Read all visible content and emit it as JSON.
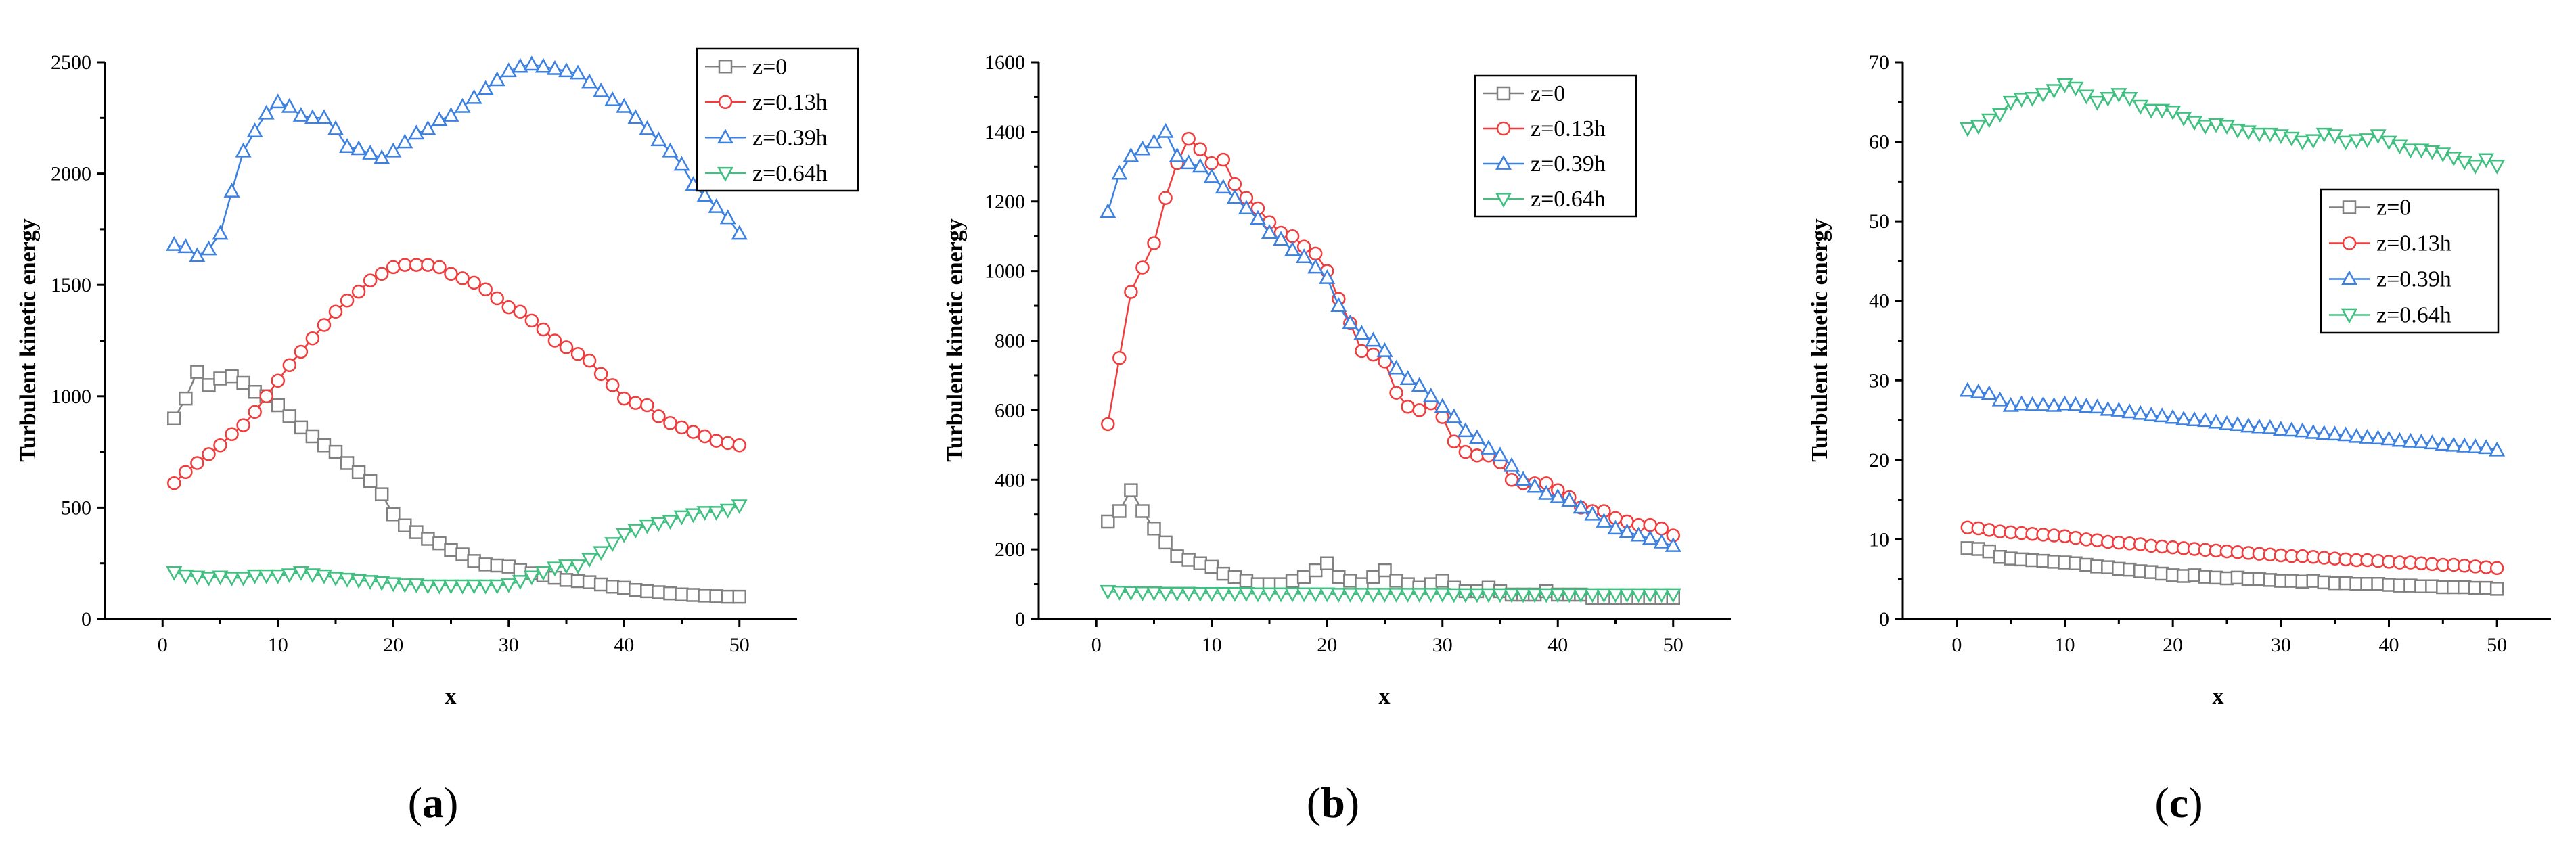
{
  "chart_data": [
    {
      "type": "line",
      "panel_label": "a",
      "xlabel": "x",
      "ylabel": "Turbulent kinetic energy",
      "xlim": [
        -5,
        55
      ],
      "ylim": [
        0,
        2500
      ],
      "xticks": [
        0,
        10,
        20,
        30,
        40,
        50
      ],
      "yticks": [
        0,
        500,
        1000,
        1500,
        2000,
        2500
      ],
      "legend_position": "top-right",
      "x": [
        1,
        2,
        3,
        4,
        5,
        6,
        7,
        8,
        9,
        10,
        11,
        12,
        13,
        14,
        15,
        16,
        17,
        18,
        19,
        20,
        21,
        22,
        23,
        24,
        25,
        26,
        27,
        28,
        29,
        30,
        31,
        32,
        33,
        34,
        35,
        36,
        37,
        38,
        39,
        40,
        41,
        42,
        43,
        44,
        45,
        46,
        47,
        48,
        49,
        50
      ],
      "series": [
        {
          "name": "z=0",
          "color": "#808080",
          "marker": "square",
          "values": [
            900,
            990,
            1110,
            1050,
            1080,
            1090,
            1060,
            1020,
            1000,
            960,
            910,
            860,
            820,
            780,
            750,
            700,
            660,
            620,
            560,
            470,
            420,
            390,
            360,
            340,
            310,
            290,
            260,
            245,
            240,
            235,
            220,
            205,
            195,
            185,
            175,
            170,
            165,
            155,
            145,
            140,
            130,
            125,
            120,
            115,
            110,
            108,
            105,
            102,
            100,
            100
          ]
        },
        {
          "name": "z=0.13h",
          "color": "#f03c3c",
          "marker": "circle",
          "values": [
            610,
            660,
            700,
            740,
            780,
            830,
            870,
            930,
            1000,
            1070,
            1140,
            1200,
            1260,
            1320,
            1380,
            1430,
            1470,
            1520,
            1550,
            1580,
            1590,
            1590,
            1590,
            1580,
            1550,
            1530,
            1510,
            1480,
            1440,
            1400,
            1380,
            1340,
            1300,
            1250,
            1220,
            1190,
            1160,
            1100,
            1050,
            990,
            970,
            960,
            910,
            880,
            860,
            840,
            820,
            800,
            790,
            780
          ]
        },
        {
          "name": "z=0.39h",
          "color": "#3c80e0",
          "marker": "triangle-up",
          "values": [
            1680,
            1670,
            1630,
            1660,
            1730,
            1920,
            2100,
            2190,
            2270,
            2320,
            2300,
            2260,
            2250,
            2250,
            2200,
            2120,
            2110,
            2090,
            2070,
            2100,
            2140,
            2180,
            2200,
            2240,
            2260,
            2300,
            2340,
            2380,
            2420,
            2460,
            2480,
            2490,
            2480,
            2470,
            2460,
            2450,
            2410,
            2370,
            2330,
            2300,
            2250,
            2200,
            2150,
            2100,
            2040,
            1950,
            1900,
            1850,
            1800,
            1730
          ]
        },
        {
          "name": "z=0.64h",
          "color": "#40c080",
          "marker": "triangle-down",
          "values": [
            210,
            195,
            190,
            185,
            190,
            185,
            185,
            195,
            195,
            195,
            200,
            210,
            200,
            195,
            185,
            180,
            175,
            170,
            165,
            160,
            155,
            155,
            150,
            150,
            150,
            150,
            150,
            150,
            150,
            155,
            170,
            190,
            210,
            230,
            240,
            240,
            270,
            300,
            340,
            380,
            400,
            420,
            430,
            440,
            460,
            470,
            480,
            480,
            490,
            510
          ]
        }
      ]
    },
    {
      "type": "line",
      "panel_label": "b",
      "xlabel": "x",
      "ylabel": "Turbulent kinetic energy",
      "xlim": [
        -5,
        55
      ],
      "ylim": [
        0,
        1600
      ],
      "xticks": [
        0,
        10,
        20,
        30,
        40,
        50
      ],
      "yticks": [
        0,
        200,
        400,
        600,
        800,
        1000,
        1200,
        1400,
        1600
      ],
      "legend_position": "top-right",
      "x": [
        1,
        2,
        3,
        4,
        5,
        6,
        7,
        8,
        9,
        10,
        11,
        12,
        13,
        14,
        15,
        16,
        17,
        18,
        19,
        20,
        21,
        22,
        23,
        24,
        25,
        26,
        27,
        28,
        29,
        30,
        31,
        32,
        33,
        34,
        35,
        36,
        37,
        38,
        39,
        40,
        41,
        42,
        43,
        44,
        45,
        46,
        47,
        48,
        49,
        50
      ],
      "series": [
        {
          "name": "z=0",
          "color": "#808080",
          "marker": "square",
          "values": [
            280,
            310,
            370,
            310,
            260,
            220,
            180,
            170,
            160,
            150,
            130,
            120,
            110,
            100,
            100,
            100,
            110,
            120,
            140,
            160,
            120,
            110,
            100,
            120,
            140,
            110,
            100,
            90,
            100,
            110,
            90,
            80,
            80,
            90,
            80,
            70,
            70,
            70,
            80,
            70,
            70,
            70,
            60,
            60,
            60,
            60,
            60,
            60,
            60,
            60
          ]
        },
        {
          "name": "z=0.13h",
          "color": "#f03c3c",
          "marker": "circle",
          "values": [
            560,
            750,
            940,
            1010,
            1080,
            1210,
            1310,
            1380,
            1350,
            1310,
            1320,
            1250,
            1210,
            1180,
            1140,
            1110,
            1100,
            1070,
            1050,
            1000,
            920,
            850,
            770,
            760,
            740,
            650,
            610,
            600,
            620,
            580,
            510,
            480,
            470,
            470,
            450,
            400,
            390,
            390,
            390,
            370,
            350,
            320,
            310,
            310,
            290,
            280,
            270,
            270,
            260,
            240
          ]
        },
        {
          "name": "z=0.39h",
          "color": "#3c80e0",
          "marker": "triangle-up",
          "values": [
            1170,
            1280,
            1330,
            1350,
            1370,
            1400,
            1330,
            1310,
            1300,
            1270,
            1240,
            1210,
            1180,
            1150,
            1110,
            1090,
            1060,
            1040,
            1010,
            980,
            900,
            850,
            820,
            800,
            770,
            720,
            690,
            670,
            640,
            610,
            580,
            540,
            520,
            490,
            470,
            440,
            400,
            380,
            360,
            350,
            340,
            320,
            300,
            280,
            260,
            250,
            240,
            230,
            220,
            210
          ]
        },
        {
          "name": "z=0.64h",
          "color": "#40c080",
          "marker": "triangle-down",
          "values": [
            80,
            78,
            77,
            76,
            76,
            75,
            75,
            75,
            74,
            74,
            74,
            74,
            74,
            73,
            73,
            73,
            73,
            73,
            73,
            73,
            72,
            72,
            72,
            72,
            72,
            72,
            72,
            72,
            72,
            72,
            71,
            71,
            71,
            71,
            71,
            71,
            71,
            71,
            71,
            71,
            71,
            71,
            71,
            71,
            71,
            71,
            71,
            71,
            71,
            71
          ]
        }
      ]
    },
    {
      "type": "line",
      "panel_label": "c",
      "xlabel": "x",
      "ylabel": "Turbulent kinetic energy",
      "xlim": [
        -5,
        55
      ],
      "ylim": [
        0,
        70
      ],
      "xticks": [
        0,
        10,
        20,
        30,
        40,
        50
      ],
      "yticks": [
        0,
        10,
        20,
        30,
        40,
        50,
        60,
        70
      ],
      "legend_position": "center-right",
      "x": [
        1,
        2,
        3,
        4,
        5,
        6,
        7,
        8,
        9,
        10,
        11,
        12,
        13,
        14,
        15,
        16,
        17,
        18,
        19,
        20,
        21,
        22,
        23,
        24,
        25,
        26,
        27,
        28,
        29,
        30,
        31,
        32,
        33,
        34,
        35,
        36,
        37,
        38,
        39,
        40,
        41,
        42,
        43,
        44,
        45,
        46,
        47,
        48,
        49,
        50
      ],
      "series": [
        {
          "name": "z=0",
          "color": "#808080",
          "marker": "square",
          "values": [
            8.9,
            8.8,
            8.5,
            7.8,
            7.6,
            7.5,
            7.4,
            7.3,
            7.2,
            7.1,
            7.0,
            6.8,
            6.6,
            6.5,
            6.3,
            6.2,
            6.0,
            5.9,
            5.7,
            5.5,
            5.4,
            5.5,
            5.3,
            5.2,
            5.1,
            5.2,
            5.0,
            5.0,
            4.9,
            4.8,
            4.8,
            4.7,
            4.8,
            4.6,
            4.5,
            4.5,
            4.4,
            4.4,
            4.4,
            4.3,
            4.2,
            4.2,
            4.1,
            4.1,
            4.0,
            4.0,
            4.0,
            3.9,
            3.9,
            3.8
          ]
        },
        {
          "name": "z=0.13h",
          "color": "#f03c3c",
          "marker": "circle",
          "values": [
            11.5,
            11.4,
            11.2,
            11.0,
            10.9,
            10.8,
            10.7,
            10.6,
            10.5,
            10.4,
            10.2,
            10.0,
            9.9,
            9.7,
            9.6,
            9.5,
            9.4,
            9.2,
            9.1,
            9.0,
            8.9,
            8.8,
            8.7,
            8.6,
            8.5,
            8.4,
            8.3,
            8.2,
            8.1,
            8.0,
            7.9,
            7.9,
            7.8,
            7.7,
            7.6,
            7.5,
            7.4,
            7.4,
            7.3,
            7.2,
            7.1,
            7.1,
            7.0,
            6.9,
            6.8,
            6.8,
            6.7,
            6.6,
            6.5,
            6.4
          ]
        },
        {
          "name": "z=0.39h",
          "color": "#3c80e0",
          "marker": "triangle-up",
          "values": [
            28.7,
            28.5,
            28.3,
            27.5,
            26.8,
            27.0,
            26.9,
            26.9,
            26.8,
            27.0,
            26.9,
            26.7,
            26.6,
            26.3,
            26.2,
            26.0,
            25.8,
            25.6,
            25.5,
            25.3,
            25.1,
            25.0,
            24.9,
            24.7,
            24.5,
            24.4,
            24.2,
            24.1,
            24.0,
            23.8,
            23.7,
            23.6,
            23.4,
            23.3,
            23.2,
            23.1,
            22.9,
            22.8,
            22.7,
            22.6,
            22.4,
            22.3,
            22.2,
            22.1,
            21.9,
            21.8,
            21.7,
            21.6,
            21.5,
            21.2
          ]
        },
        {
          "name": "z=0.64h",
          "color": "#40c080",
          "marker": "triangle-down",
          "values": [
            61.7,
            62.0,
            62.8,
            63.5,
            65.0,
            65.4,
            65.5,
            66.0,
            66.5,
            67.2,
            66.8,
            65.8,
            65.0,
            65.5,
            66.0,
            65.5,
            64.5,
            64.0,
            64.0,
            63.8,
            63.0,
            62.5,
            62.0,
            62.2,
            62.0,
            61.5,
            61.3,
            61.0,
            61.0,
            60.8,
            60.5,
            60.0,
            60.2,
            61.0,
            60.8,
            60.0,
            60.2,
            60.3,
            60.8,
            60.0,
            59.5,
            59.0,
            59.0,
            58.8,
            58.5,
            58.0,
            57.5,
            57.0,
            57.8,
            57.0
          ]
        }
      ]
    }
  ]
}
